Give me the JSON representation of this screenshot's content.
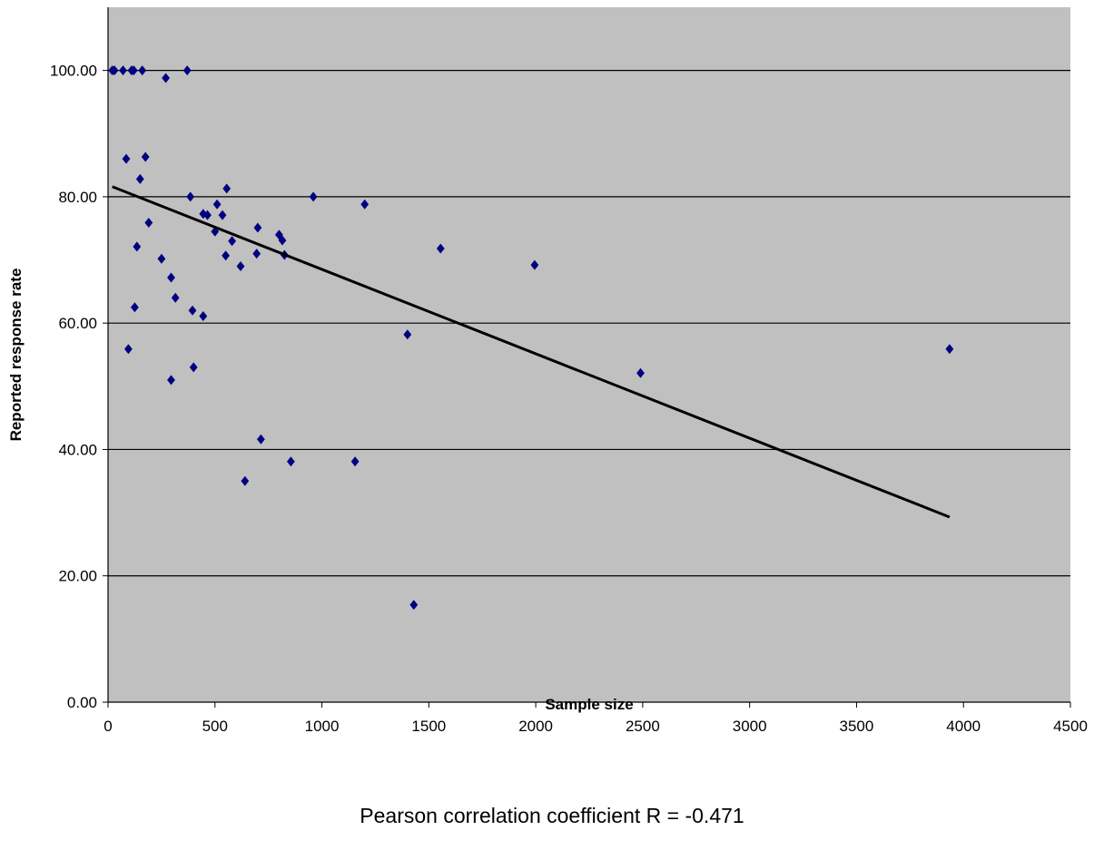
{
  "chart_data": {
    "type": "scatter",
    "title": "",
    "xlabel": "Sample size",
    "ylabel": "Reported response rate",
    "xlim": [
      0,
      4500
    ],
    "ylim": [
      0,
      110
    ],
    "x_ticks": [
      "0",
      "500",
      "1000",
      "1500",
      "2000",
      "2500",
      "3000",
      "3500",
      "4000",
      "4500"
    ],
    "y_ticks": [
      "0.00",
      "20.00",
      "40.00",
      "60.00",
      "80.00",
      "100.00"
    ],
    "grid": "horizontal",
    "legend": "none",
    "background_color": "#c0c0c0",
    "marker_color": "#000080",
    "marker": "diamond",
    "points": [
      {
        "x": 20,
        "y": 100
      },
      {
        "x": 30,
        "y": 100
      },
      {
        "x": 70,
        "y": 100
      },
      {
        "x": 110,
        "y": 100
      },
      {
        "x": 120,
        "y": 100
      },
      {
        "x": 160,
        "y": 100
      },
      {
        "x": 370,
        "y": 100
      },
      {
        "x": 270,
        "y": 98.8
      },
      {
        "x": 85,
        "y": 86
      },
      {
        "x": 175,
        "y": 86.3
      },
      {
        "x": 150,
        "y": 82.8
      },
      {
        "x": 190,
        "y": 75.9
      },
      {
        "x": 135,
        "y": 72.1
      },
      {
        "x": 250,
        "y": 70.2
      },
      {
        "x": 295,
        "y": 67.2
      },
      {
        "x": 125,
        "y": 62.5
      },
      {
        "x": 315,
        "y": 64
      },
      {
        "x": 95,
        "y": 55.9
      },
      {
        "x": 295,
        "y": 51
      },
      {
        "x": 385,
        "y": 80
      },
      {
        "x": 395,
        "y": 62
      },
      {
        "x": 445,
        "y": 61.1
      },
      {
        "x": 400,
        "y": 53
      },
      {
        "x": 445,
        "y": 77.3
      },
      {
        "x": 465,
        "y": 77.1
      },
      {
        "x": 500,
        "y": 74.5
      },
      {
        "x": 510,
        "y": 78.8
      },
      {
        "x": 535,
        "y": 77.1
      },
      {
        "x": 555,
        "y": 81.3
      },
      {
        "x": 580,
        "y": 73
      },
      {
        "x": 550,
        "y": 70.7
      },
      {
        "x": 620,
        "y": 69
      },
      {
        "x": 700,
        "y": 75.1
      },
      {
        "x": 695,
        "y": 71
      },
      {
        "x": 800,
        "y": 74
      },
      {
        "x": 815,
        "y": 73.1
      },
      {
        "x": 825,
        "y": 70.8
      },
      {
        "x": 960,
        "y": 80
      },
      {
        "x": 1200,
        "y": 78.8
      },
      {
        "x": 1400,
        "y": 58.2
      },
      {
        "x": 1555,
        "y": 71.8
      },
      {
        "x": 1995,
        "y": 69.2
      },
      {
        "x": 2490,
        "y": 52.1
      },
      {
        "x": 3935,
        "y": 55.9
      },
      {
        "x": 640,
        "y": 35
      },
      {
        "x": 715,
        "y": 41.6
      },
      {
        "x": 855,
        "y": 38.1
      },
      {
        "x": 1155,
        "y": 38.1
      },
      {
        "x": 1430,
        "y": 15.4
      }
    ],
    "trendline": {
      "type": "linear",
      "color": "#000000",
      "points": [
        {
          "x": 20,
          "y": 81.6
        },
        {
          "x": 3935,
          "y": 29.3
        }
      ]
    },
    "annotation": "Pearson correlation coefficient  R = -0.471"
  }
}
